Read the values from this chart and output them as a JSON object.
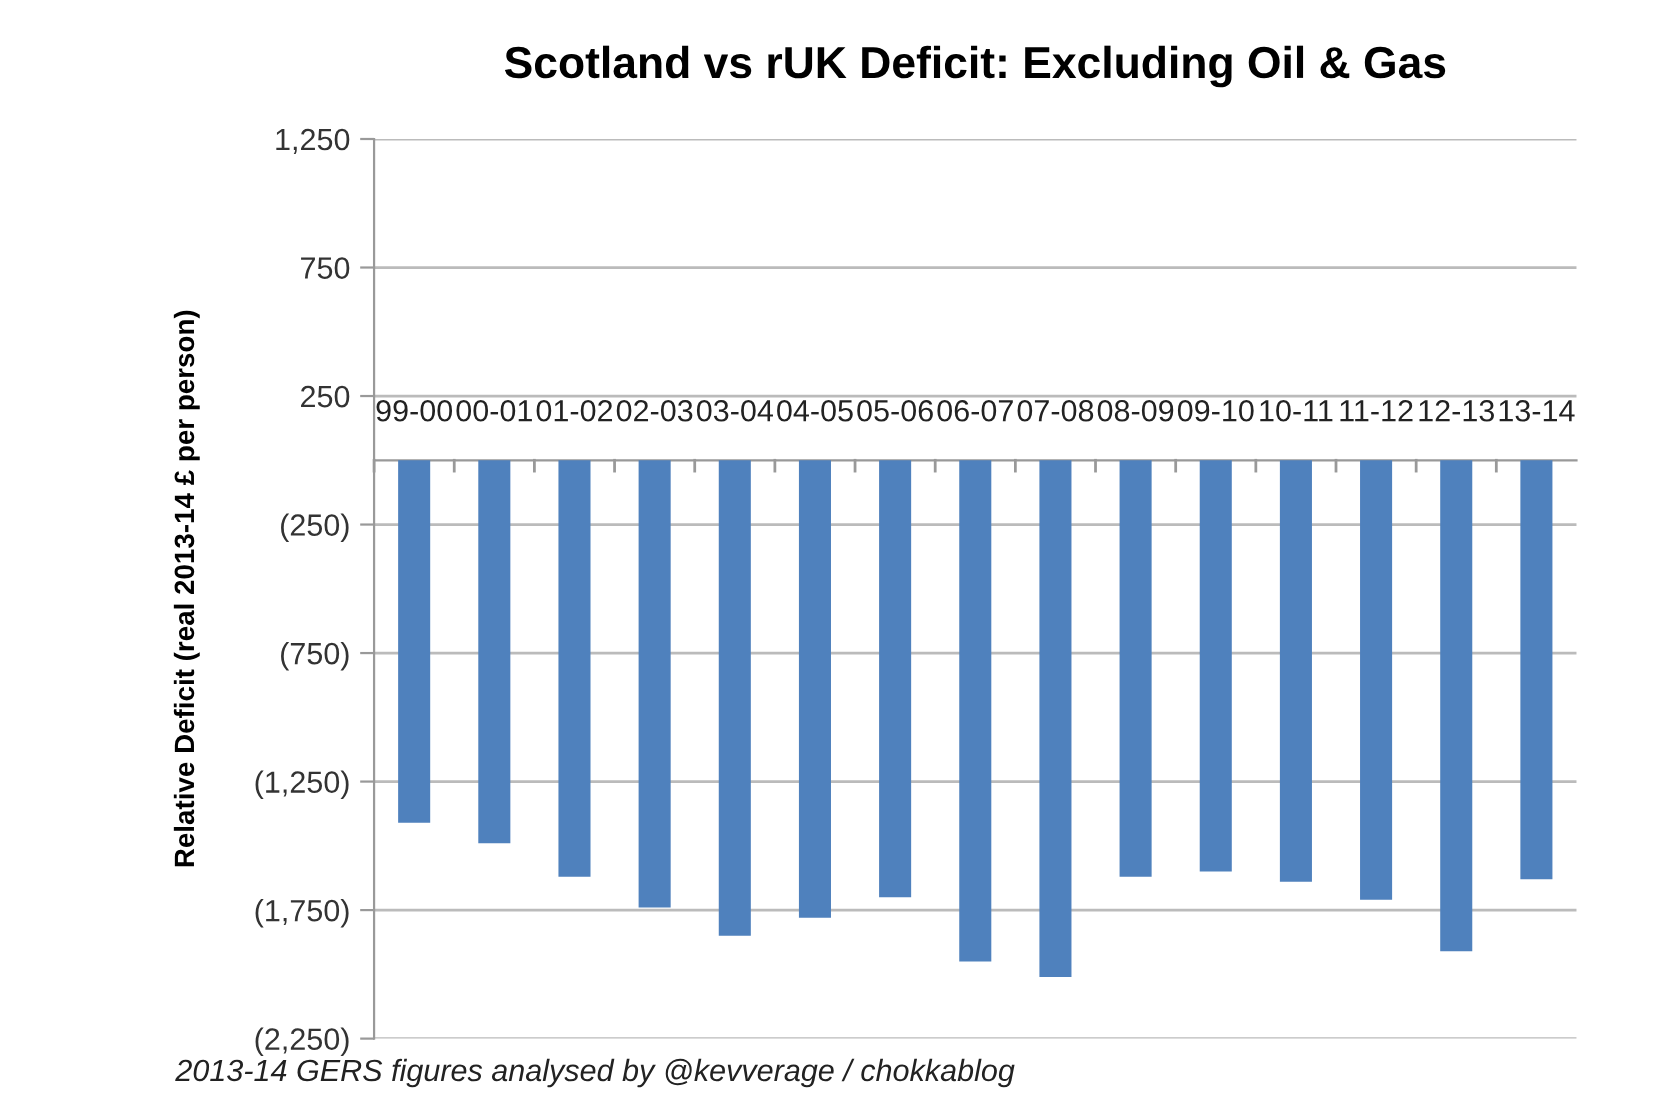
{
  "chart_data": {
    "type": "bar",
    "title": "Scotland vs rUK Deficit: Excluding Oil & Gas",
    "ylabel": "Relative Deficit (real 2013-14 £ per person)",
    "categories": [
      "99-00",
      "00-01",
      "01-02",
      "02-03",
      "03-04",
      "04-05",
      "05-06",
      "06-07",
      "07-08",
      "08-09",
      "09-10",
      "10-11",
      "11-12",
      "12-13",
      "13-14"
    ],
    "values": [
      -1410,
      -1490,
      -1620,
      -1740,
      -1850,
      -1780,
      -1700,
      -1950,
      -2010,
      -1620,
      -1600,
      -1640,
      -1710,
      -1910,
      -1630
    ],
    "color": "#4f81bd",
    "ylim": [
      -2250,
      1250
    ],
    "yticks": [
      {
        "value": 1250,
        "label": "1,250"
      },
      750,
      250,
      {
        "value": -250,
        "label": "(250)"
      },
      {
        "value": -750,
        "label": "(750)"
      },
      {
        "value": -1250,
        "label": "(1,250)"
      },
      {
        "value": -1750,
        "label": "(1,750)"
      },
      {
        "value": -2250,
        "label": "(2,250)"
      }
    ],
    "grid": "y",
    "annotations": [
      "2013-14 GERS figures analysed by @kevverage / chokkablog"
    ]
  }
}
